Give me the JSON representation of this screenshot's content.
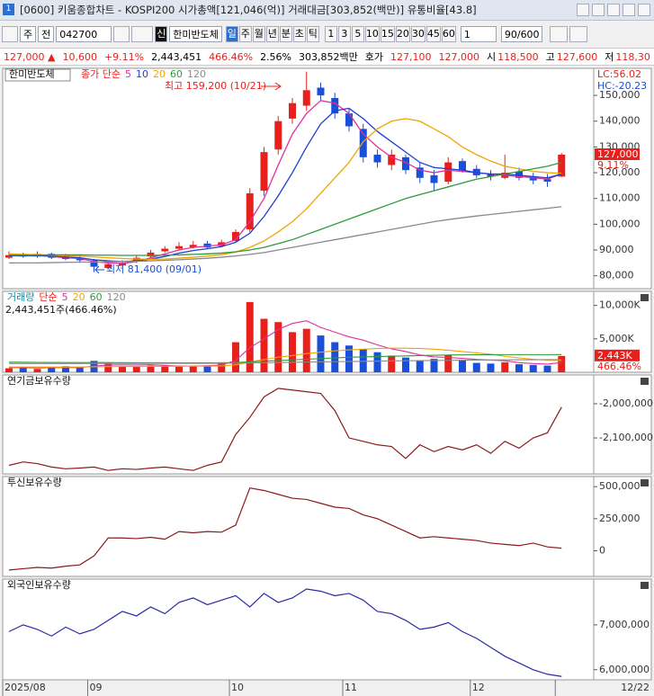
{
  "window": {
    "title": "[0600] 키움종합차트 - KOSPI200 시가총액[121,046(억)] 거래대금[303,852(백만)] 유통비율[43.8]"
  },
  "toolbar": {
    "market": "주",
    "range": "전",
    "code": "042700",
    "badge": "신",
    "name": "한미반도체",
    "periods": [
      "일",
      "주",
      "월",
      "년",
      "분",
      "초",
      "틱"
    ],
    "minutes": [
      "1",
      "3",
      "5",
      "10",
      "15",
      "20",
      "30",
      "45",
      "60"
    ],
    "unit": "1",
    "count": "90/600"
  },
  "quote": {
    "price": "127,000 ▲",
    "change": "10,600",
    "rate": "+9.11%",
    "volume": "2,443,451",
    "volume_rate": "466.46%",
    "turnover": "2.56%",
    "amount": "303,852백만",
    "ask_label": "호가",
    "ask": "127,100",
    "bid": "127,000",
    "open_label": "시",
    "open": "118,500",
    "high_label": "고",
    "high": "127,600",
    "low_label": "저",
    "low": "118,30"
  },
  "chart_data": [
    {
      "type": "candlestick",
      "title": "한미반도체",
      "legend_prefix": "종가 단순",
      "up_color": "#e8201c",
      "down_color": "#1a4fd8",
      "open": [
        87000,
        88500,
        87500,
        88500,
        87500,
        87000,
        86000,
        83000,
        84000,
        85500,
        87500,
        89500,
        90500,
        91000,
        92500,
        91500,
        93500,
        98000,
        113000,
        129000,
        141000,
        146000,
        153000,
        149000,
        143000,
        137000,
        127000,
        123000,
        126000,
        122000,
        119000,
        116500,
        124500,
        121500,
        119500,
        118000,
        120500,
        118500,
        117500,
        118500
      ],
      "high": [
        89500,
        89000,
        89500,
        89000,
        88500,
        88000,
        86500,
        85500,
        86000,
        88000,
        90000,
        91500,
        93000,
        93500,
        93500,
        94000,
        98000,
        114000,
        130000,
        142000,
        149000,
        159200,
        155000,
        151000,
        145000,
        139000,
        129000,
        129000,
        127000,
        124000,
        121000,
        126000,
        125500,
        123000,
        121000,
        127000,
        122000,
        120000,
        119500,
        127600
      ],
      "low": [
        86500,
        87000,
        87000,
        86500,
        86000,
        85000,
        81400,
        82500,
        83500,
        85000,
        87000,
        89000,
        90000,
        90500,
        90500,
        91000,
        93000,
        97000,
        111000,
        127000,
        139000,
        144000,
        148000,
        141000,
        136000,
        124000,
        122000,
        121000,
        119500,
        116000,
        113000,
        115500,
        120000,
        118000,
        117000,
        117500,
        117000,
        115500,
        114500,
        118300
      ],
      "close": [
        88000,
        87500,
        88500,
        87000,
        86500,
        86000,
        83500,
        84500,
        85000,
        87000,
        89000,
        90500,
        91500,
        92000,
        91000,
        93000,
        97000,
        112000,
        128000,
        140000,
        147000,
        152000,
        150000,
        143000,
        138000,
        126000,
        124000,
        127000,
        121000,
        118000,
        116000,
        124000,
        121000,
        119000,
        118500,
        120000,
        118000,
        117000,
        116500,
        127000
      ],
      "series": [
        {
          "name": "5",
          "color": "#e0309a",
          "values": [
            88000,
            87800,
            87900,
            87500,
            87000,
            86700,
            85500,
            85000,
            84800,
            85500,
            87000,
            88500,
            90000,
            91000,
            91500,
            92000,
            94000,
            101000,
            110000,
            123000,
            135000,
            143000,
            148000,
            147000,
            143000,
            135000,
            130000,
            126000,
            124000,
            121000,
            120000,
            121000,
            120500,
            120000,
            119500,
            119000,
            118500,
            118000,
            117500,
            119500
          ]
        },
        {
          "name": "10",
          "color": "#1f3fd0",
          "values": [
            87800,
            87700,
            87800,
            87600,
            87300,
            87000,
            86200,
            85800,
            85500,
            85800,
            86500,
            87500,
            88800,
            89800,
            90500,
            91300,
            93000,
            96500,
            103000,
            111000,
            120000,
            130000,
            139000,
            144000,
            145000,
            141000,
            136000,
            132000,
            128000,
            124000,
            122000,
            121500,
            121000,
            120000,
            119500,
            119500,
            119000,
            118500,
            118000,
            119500
          ]
        },
        {
          "name": "20",
          "color": "#f0a500",
          "values": [
            88500,
            88300,
            88200,
            88000,
            87800,
            87600,
            87300,
            87000,
            86700,
            86500,
            86400,
            86500,
            86800,
            87200,
            87600,
            88200,
            89200,
            91000,
            93500,
            97000,
            101000,
            106000,
            112000,
            118000,
            124000,
            132000,
            137000,
            140000,
            141000,
            140000,
            137000,
            134000,
            130000,
            127000,
            124500,
            122500,
            121500,
            120500,
            120000,
            119800
          ]
        },
        {
          "name": "60",
          "color": "#2e9a3a",
          "values": [
            88000,
            88000,
            88000,
            88100,
            88100,
            88100,
            88000,
            88000,
            87900,
            87900,
            87900,
            88000,
            88100,
            88300,
            88500,
            88800,
            89300,
            90000,
            91000,
            92500,
            94000,
            96000,
            98000,
            100000,
            102000,
            104000,
            106000,
            108000,
            110000,
            111500,
            113000,
            114500,
            116000,
            117500,
            118500,
            119500,
            120500,
            121500,
            122500,
            124000
          ]
        },
        {
          "name": "120",
          "color": "#8a8a8a",
          "values": [
            85000,
            85000,
            85000,
            85100,
            85200,
            85300,
            85300,
            85400,
            85500,
            85600,
            85800,
            86000,
            86200,
            86500,
            86800,
            87200,
            87700,
            88300,
            89000,
            90000,
            91000,
            92000,
            93000,
            94000,
            95000,
            96000,
            97000,
            98000,
            99000,
            100000,
            101000,
            101800,
            102500,
            103200,
            103800,
            104400,
            105000,
            105600,
            106200,
            106800
          ]
        }
      ],
      "ylim": [
        75000,
        160500
      ],
      "yticks": [
        {
          "value": 80000,
          "label": "80,000"
        },
        {
          "value": 90000,
          "label": "90,000"
        },
        {
          "value": 100000,
          "label": "100,000"
        },
        {
          "value": 110000,
          "label": "110,000"
        },
        {
          "value": 120000,
          "label": "120,000"
        },
        {
          "value": 130000,
          "label": "130,000"
        },
        {
          "value": 140000,
          "label": "140,000"
        },
        {
          "value": 150000,
          "label": "150,000"
        }
      ],
      "annotations": [
        "최고 159,200 (10/21)",
        "최저 81,400 (09/01)"
      ],
      "side_labels": [
        "LC:56.02",
        "HC:-20.23"
      ],
      "last_label": "127,000",
      "change_label": "9.11%"
    },
    {
      "type": "bar",
      "title": "거래량",
      "legend_prefix": "단순",
      "summary": "2,443,451주(466.46%)",
      "values": [
        600000,
        700000,
        500000,
        800000,
        900000,
        700000,
        1700000,
        1300000,
        900000,
        800000,
        1000000,
        1100000,
        900000,
        1000000,
        900000,
        1500000,
        4500000,
        10500000,
        8000000,
        7500000,
        6000000,
        6500000,
        5500000,
        4500000,
        4000000,
        3500000,
        3000000,
        2500000,
        2200000,
        1800000,
        2000000,
        2600000,
        1800000,
        1400000,
        1300000,
        1500000,
        1200000,
        1100000,
        1000000,
        2443451
      ],
      "series": [
        {
          "name": "5",
          "color": "#e0309a",
          "values": [
            700000,
            700000,
            650000,
            700000,
            700000,
            720000,
            920000,
            1080000,
            1100000,
            1080000,
            1140000,
            1020000,
            940000,
            940000,
            980000,
            1080000,
            1760000,
            3680000,
            4980000,
            6400000,
            7300000,
            7700000,
            6700000,
            6000000,
            5300000,
            4800000,
            4100000,
            3500000,
            3100000,
            2600000,
            2300000,
            2220000,
            2080000,
            1920000,
            1820000,
            1720000,
            1440000,
            1300000,
            1220000,
            1450000
          ]
        },
        {
          "name": "20",
          "color": "#f0a500",
          "values": [
            800000,
            790000,
            780000,
            780000,
            780000,
            790000,
            820000,
            850000,
            860000,
            870000,
            880000,
            890000,
            900000,
            910000,
            920000,
            950000,
            1100000,
            1550000,
            1900000,
            2250000,
            2500000,
            2800000,
            3000000,
            3200000,
            3350000,
            3450000,
            3550000,
            3600000,
            3600000,
            3550000,
            3450000,
            3300000,
            3100000,
            2900000,
            2700000,
            2400000,
            2150000,
            1950000,
            1800000,
            1750000
          ]
        },
        {
          "name": "60",
          "color": "#2e9a3a",
          "values": [
            1500000,
            1500000,
            1480000,
            1470000,
            1460000,
            1450000,
            1450000,
            1450000,
            1440000,
            1430000,
            1420000,
            1420000,
            1410000,
            1400000,
            1400000,
            1410000,
            1450000,
            1550000,
            1650000,
            1750000,
            1850000,
            1950000,
            2050000,
            2150000,
            2250000,
            2300000,
            2350000,
            2400000,
            2450000,
            2500000,
            2550000,
            2580000,
            2600000,
            2620000,
            2630000,
            2640000,
            2640000,
            2640000,
            2640000,
            2650000
          ]
        },
        {
          "name": "120",
          "color": "#8a8a8a",
          "values": [
            1300000,
            1300000,
            1300000,
            1300000,
            1300000,
            1300000,
            1310000,
            1320000,
            1320000,
            1320000,
            1330000,
            1330000,
            1330000,
            1340000,
            1340000,
            1350000,
            1370000,
            1400000,
            1430000,
            1460000,
            1490000,
            1520000,
            1550000,
            1580000,
            1610000,
            1640000,
            1670000,
            1700000,
            1720000,
            1740000,
            1760000,
            1780000,
            1800000,
            1820000,
            1840000,
            1860000,
            1870000,
            1880000,
            1890000,
            1900000
          ]
        }
      ],
      "ylim": [
        0,
        12100000
      ],
      "yticks": [
        {
          "value": 5000000,
          "label": "5,000K"
        },
        {
          "value": 10000000,
          "label": "10,000K"
        }
      ],
      "last_label": "2,443K",
      "change_label": "466.46%"
    },
    {
      "type": "line",
      "title": "연기금보유수량",
      "color": "#8b1a1a",
      "values": [
        -2180000,
        -2170000,
        -2175000,
        -2185000,
        -2190000,
        -2188000,
        -2185000,
        -2195000,
        -2190000,
        -2192000,
        -2188000,
        -2185000,
        -2190000,
        -2195000,
        -2180000,
        -2170000,
        -2090000,
        -2040000,
        -1980000,
        -1955000,
        -1960000,
        -1965000,
        -1970000,
        -2020000,
        -2100000,
        -2110000,
        -2120000,
        -2125000,
        -2160000,
        -2120000,
        -2140000,
        -2125000,
        -2135000,
        -2120000,
        -2145000,
        -2110000,
        -2130000,
        -2100000,
        -2085000,
        -2010000
      ],
      "ylim": [
        -2205000,
        -1916000
      ],
      "yticks": [
        {
          "value": -2000000,
          "label": "-2,000,000"
        },
        {
          "value": -2100000,
          "label": "-2,100,000"
        }
      ]
    },
    {
      "type": "line",
      "title": "투신보유수량",
      "color": "#8b1a1a",
      "values": [
        -150000,
        -140000,
        -130000,
        -135000,
        -120000,
        -110000,
        -40000,
        100000,
        100000,
        95000,
        105000,
        90000,
        150000,
        140000,
        150000,
        145000,
        200000,
        490000,
        470000,
        440000,
        410000,
        400000,
        370000,
        340000,
        330000,
        280000,
        250000,
        200000,
        150000,
        100000,
        110000,
        100000,
        90000,
        80000,
        60000,
        50000,
        40000,
        60000,
        30000,
        20000
      ],
      "ylim": [
        -200000,
        578600
      ],
      "yticks": [
        0,
        {
          "value": 250000,
          "label": "250,000"
        },
        {
          "value": 500000,
          "label": "500,000"
        }
      ]
    },
    {
      "type": "line",
      "title": "외국인보유수량",
      "color": "#2a2aa8",
      "values": [
        6850000,
        7000000,
        6900000,
        6750000,
        6950000,
        6800000,
        6900000,
        7100000,
        7300000,
        7200000,
        7400000,
        7250000,
        7500000,
        7600000,
        7450000,
        7550000,
        7650000,
        7400000,
        7700000,
        7500000,
        7600000,
        7800000,
        7750000,
        7650000,
        7700000,
        7550000,
        7300000,
        7250000,
        7100000,
        6900000,
        6950000,
        7050000,
        6850000,
        6700000,
        6500000,
        6300000,
        6150000,
        6000000,
        5900000,
        5850000
      ],
      "ylim": [
        5775000,
        8020000
      ],
      "yticks": [
        {
          "value": 6000000,
          "label": "6,000,000"
        },
        {
          "value": 7000000,
          "label": "7,000,000"
        }
      ],
      "xticks": [
        {
          "value": 0,
          "label": "2025/08"
        },
        {
          "value": 6,
          "label": "09"
        },
        {
          "value": 16,
          "label": "10"
        },
        {
          "value": 24,
          "label": "11"
        },
        {
          "value": 33,
          "label": "12"
        },
        {
          "value": 39,
          "label": "12/22"
        }
      ]
    }
  ]
}
